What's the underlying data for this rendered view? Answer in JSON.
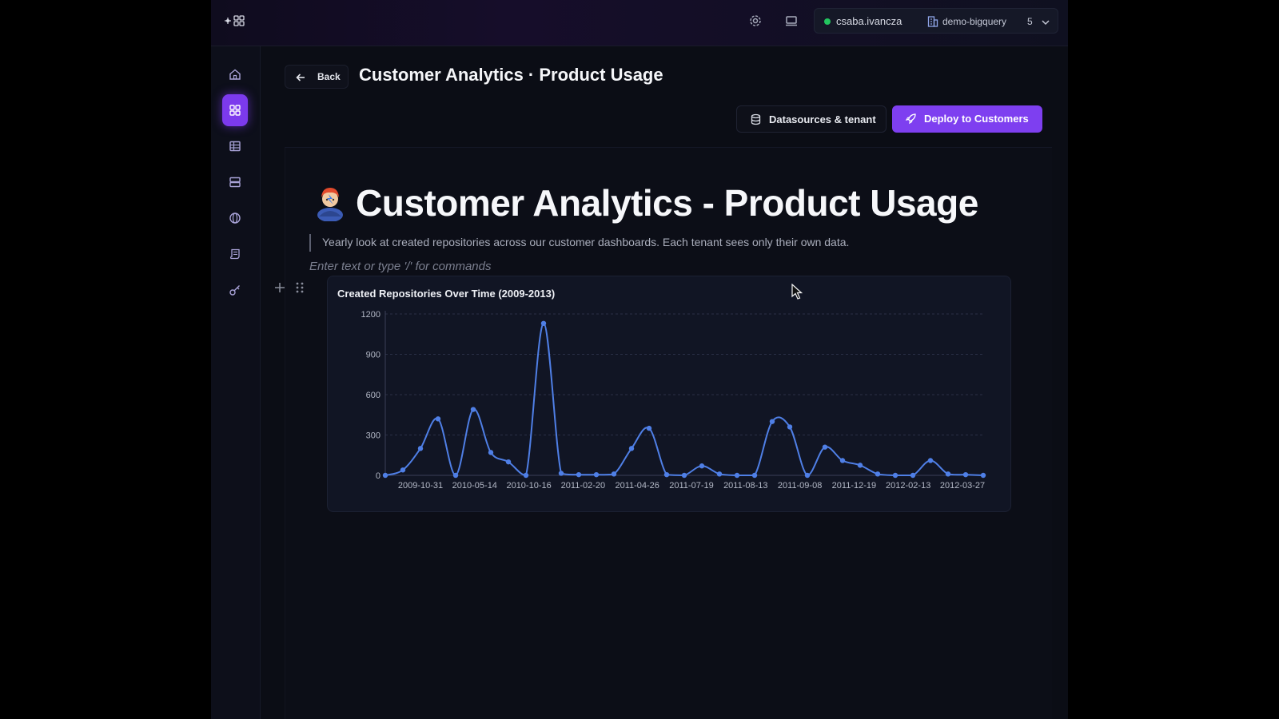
{
  "topbar": {
    "username": "csaba.ivancza",
    "tenant": "demo-bigquery",
    "tenant_count": "5",
    "icons": [
      "logo-icon",
      "gear-icon",
      "monitor-icon",
      "database-icon",
      "chevron-down-icon"
    ]
  },
  "sidebar": {
    "items": [
      {
        "name": "home-icon",
        "active": false
      },
      {
        "name": "dashboards-icon",
        "active": true
      },
      {
        "name": "table-icon",
        "active": false
      },
      {
        "name": "database-icon",
        "active": false
      },
      {
        "name": "globe-icon",
        "active": false
      },
      {
        "name": "script-icon",
        "active": false
      },
      {
        "name": "key-icon",
        "active": false
      }
    ]
  },
  "header": {
    "back_label": "Back",
    "title": "Customer Analytics · Product Usage",
    "datasources_label": "Datasources & tenant",
    "deploy_label": "Deploy to Customers"
  },
  "document": {
    "title": "Customer Analytics - Product Usage",
    "description": "Yearly look at created repositories across our customer dashboards. Each tenant sees only their own data.",
    "placeholder": "Enter text or type '/' for commands"
  },
  "colors": {
    "accent": "#7e3ff0",
    "line": "#4f7fe6",
    "background": "#0b0d15"
  },
  "chart_data": {
    "type": "line",
    "title": "Created Repositories Over Time (2009-2013)",
    "xlabel": "",
    "ylabel": "",
    "ylim": [
      0,
      1200
    ],
    "yticks": [
      0,
      300,
      600,
      900,
      1200
    ],
    "xtick_labels": [
      "2009-10-31",
      "2010-05-14",
      "2010-10-16",
      "2011-02-20",
      "2011-04-26",
      "2011-07-19",
      "2011-08-13",
      "2011-09-08",
      "2011-12-19",
      "2012-02-13",
      "2012-03-27"
    ],
    "grid": true,
    "values": [
      0,
      40,
      200,
      420,
      0,
      490,
      170,
      100,
      0,
      1130,
      15,
      5,
      5,
      10,
      200,
      350,
      5,
      0,
      70,
      10,
      0,
      0,
      400,
      360,
      0,
      210,
      110,
      75,
      10,
      0,
      0,
      110,
      10,
      5,
      0
    ]
  }
}
